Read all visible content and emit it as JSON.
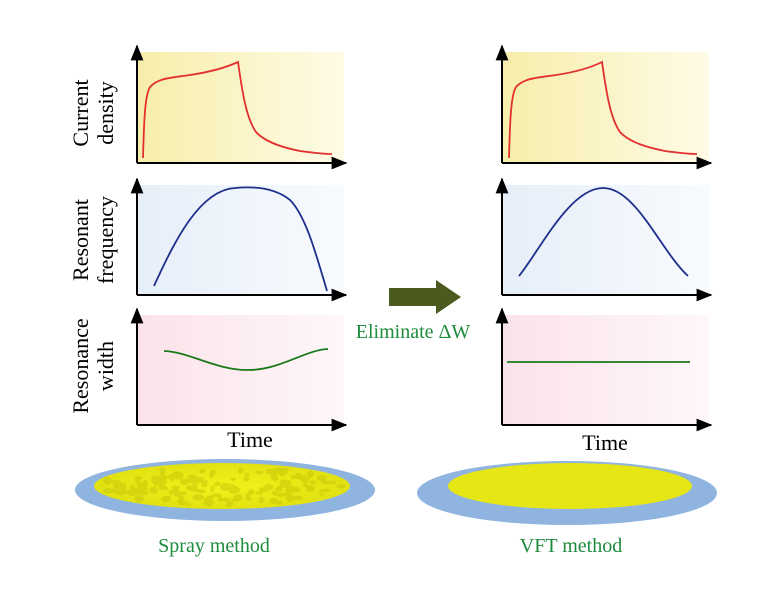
{
  "y_axis_labels": {
    "current": [
      "Current",
      "density"
    ],
    "frequency": [
      "Resonant",
      "frequency"
    ],
    "width": [
      "Resonance",
      "width"
    ]
  },
  "time_label_left": "Time",
  "time_label_right": "Time",
  "arrow_label": "Eliminate ΔW",
  "left_method_label": "Spray method",
  "right_method_label": "VFT method",
  "colors": {
    "current_curve": "#e23030",
    "frequency_curve": "#1e2f8c",
    "width_curve": "#1a7a1a",
    "current_bg": "#fbf5c6",
    "frequency_bg": "#eef3fb",
    "width_bg": "#fbe9ee",
    "arrow": "#4b5a1e",
    "label_green": "#1e8c3c",
    "film_yellow": "#e6e614",
    "substrate_blue": "#8eb4df"
  }
}
